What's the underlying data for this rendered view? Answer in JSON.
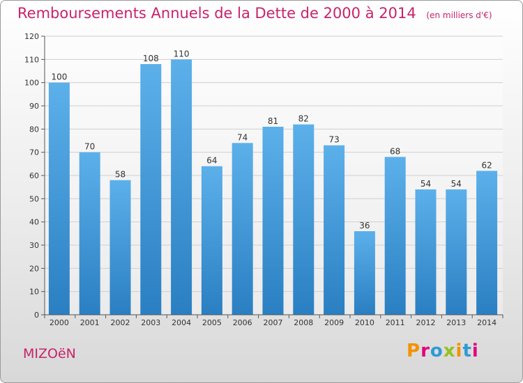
{
  "chart_data": {
    "type": "bar",
    "title": "Remboursements Annuels de la Dette de 2000 à 2014",
    "subtitle": "(en milliers d'€)",
    "categories": [
      "2000",
      "2001",
      "2002",
      "2003",
      "2004",
      "2005",
      "2006",
      "2007",
      "2008",
      "2009",
      "2010",
      "2011",
      "2012",
      "2013",
      "2014"
    ],
    "values": [
      100,
      70,
      58,
      108,
      110,
      64,
      74,
      81,
      82,
      73,
      36,
      68,
      54,
      54,
      62
    ],
    "ylim": [
      0,
      120
    ],
    "yticks": [
      0,
      10,
      20,
      30,
      40,
      50,
      60,
      70,
      80,
      90,
      100,
      110,
      120
    ],
    "xlabel": "",
    "ylabel": "",
    "grid": true,
    "bar_color": "#4d9fdb"
  },
  "footer": {
    "commune": "MIZOëN",
    "logo": "Proxiti"
  }
}
